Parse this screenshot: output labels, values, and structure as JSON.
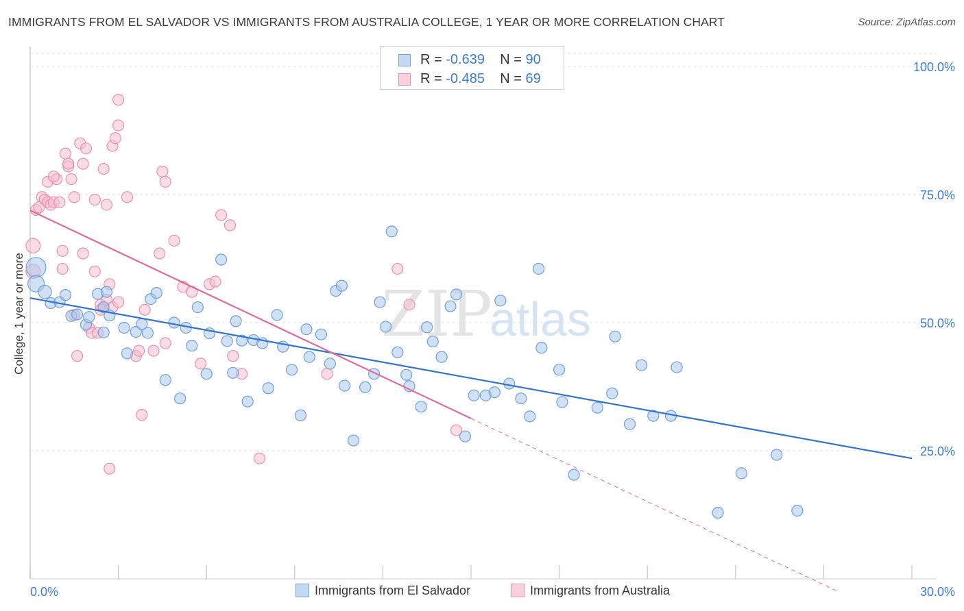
{
  "title": "IMMIGRANTS FROM EL SALVADOR VS IMMIGRANTS FROM AUSTRALIA COLLEGE, 1 YEAR OR MORE CORRELATION CHART",
  "source": "Source: ZipAtlas.com",
  "watermark": {
    "zip": "ZIP",
    "atlas": "atlas"
  },
  "legend": {
    "series1": {
      "r_label": "R = ",
      "r_value": "-0.639",
      "n_label": "N = ",
      "n_value": "90"
    },
    "series2": {
      "r_label": "R = ",
      "r_value": "-0.485",
      "n_label": "N = ",
      "n_value": "69"
    }
  },
  "bottom_legend": {
    "series1": "Immigrants from El Salvador",
    "series2": "Immigrants from Australia"
  },
  "colors": {
    "blue_fill": "#a9c6ec",
    "blue_stroke": "#6f9fdc",
    "blue_line": "#2f74d0",
    "pink_fill": "#f6bfd0",
    "pink_stroke": "#ec8fae",
    "pink_line": "#e2699a",
    "grid": "#dcdcdc",
    "tick_label": "#3a7bd5"
  },
  "chart_data": {
    "type": "scatter",
    "title": "IMMIGRANTS FROM EL SALVADOR VS IMMIGRANTS FROM AUSTRALIA COLLEGE, 1 YEAR OR MORE CORRELATION CHART",
    "xlabel": "",
    "ylabel": "College, 1 year or more",
    "xlim": [
      0,
      30
    ],
    "ylim": [
      0,
      105
    ],
    "x_tick_labels": [
      "0.0%",
      "30.0%"
    ],
    "y_ticks": [
      25,
      50,
      75,
      100
    ],
    "y_tick_labels": [
      "25.0%",
      "50.0%",
      "75.0%",
      "100.0%"
    ],
    "series": [
      {
        "name": "Immigrants from El Salvador",
        "r": -0.639,
        "n": 90,
        "trend": {
          "x0": 0,
          "y0": 54.8,
          "x1": 30,
          "y1": 23.5
        },
        "points": [
          [
            0.2,
            60.8,
            1.8
          ],
          [
            0.2,
            57.6,
            1.5
          ],
          [
            0.5,
            56.0,
            1.2
          ],
          [
            0.7,
            53.8,
            1
          ],
          [
            1.0,
            54.0,
            1
          ],
          [
            1.2,
            55.4,
            1
          ],
          [
            1.4,
            51.3,
            1
          ],
          [
            1.6,
            51.6,
            1
          ],
          [
            1.9,
            49.6,
            1
          ],
          [
            2.0,
            51.1,
            1
          ],
          [
            2.5,
            53.0,
            1
          ],
          [
            2.7,
            51.4,
            1
          ],
          [
            2.3,
            55.6,
            1
          ],
          [
            2.6,
            56.0,
            1
          ],
          [
            2.5,
            48.1,
            1
          ],
          [
            3.2,
            49.0,
            1
          ],
          [
            3.3,
            44.0,
            1
          ],
          [
            3.6,
            48.2,
            1
          ],
          [
            3.8,
            49.7,
            1
          ],
          [
            4.0,
            48.0,
            1
          ],
          [
            4.1,
            54.6,
            1
          ],
          [
            4.3,
            55.8,
            1
          ],
          [
            4.6,
            38.8,
            1
          ],
          [
            4.9,
            50.0,
            1
          ],
          [
            5.1,
            35.2,
            1
          ],
          [
            5.3,
            49.0,
            1
          ],
          [
            5.5,
            45.5,
            1
          ],
          [
            5.7,
            53.0,
            1
          ],
          [
            6.0,
            40.0,
            1
          ],
          [
            6.1,
            47.9,
            1
          ],
          [
            6.5,
            62.3,
            1
          ],
          [
            6.7,
            46.4,
            1
          ],
          [
            6.9,
            40.2,
            1
          ],
          [
            7.0,
            50.3,
            1
          ],
          [
            7.2,
            46.5,
            1
          ],
          [
            7.4,
            34.6,
            1
          ],
          [
            7.6,
            46.6,
            1
          ],
          [
            7.9,
            46.0,
            1
          ],
          [
            8.1,
            37.2,
            1
          ],
          [
            8.4,
            51.5,
            1
          ],
          [
            8.6,
            45.3,
            1
          ],
          [
            8.9,
            40.8,
            1
          ],
          [
            9.2,
            31.9,
            1
          ],
          [
            9.4,
            48.7,
            1
          ],
          [
            9.5,
            43.3,
            1
          ],
          [
            9.9,
            47.7,
            1
          ],
          [
            10.2,
            42.0,
            1
          ],
          [
            10.4,
            56.2,
            1
          ],
          [
            10.6,
            57.2,
            1
          ],
          [
            10.7,
            37.7,
            1
          ],
          [
            11.0,
            27.0,
            1
          ],
          [
            11.4,
            37.4,
            1
          ],
          [
            11.7,
            40.0,
            1
          ],
          [
            11.9,
            54.0,
            1
          ],
          [
            12.1,
            49.2,
            1
          ],
          [
            12.3,
            67.8,
            1
          ],
          [
            12.5,
            44.2,
            1
          ],
          [
            12.8,
            39.8,
            1
          ],
          [
            12.9,
            37.6,
            1
          ],
          [
            13.3,
            33.6,
            1
          ],
          [
            13.5,
            49.1,
            1
          ],
          [
            13.7,
            46.3,
            1
          ],
          [
            14.0,
            43.3,
            1
          ],
          [
            14.3,
            53.2,
            1
          ],
          [
            14.5,
            55.5,
            1
          ],
          [
            14.8,
            27.8,
            1
          ],
          [
            15.1,
            35.8,
            1
          ],
          [
            15.5,
            35.8,
            1
          ],
          [
            15.8,
            36.4,
            1
          ],
          [
            16.0,
            54.3,
            1
          ],
          [
            16.3,
            38.1,
            1
          ],
          [
            16.7,
            35.2,
            1
          ],
          [
            17.0,
            31.7,
            1
          ],
          [
            17.3,
            60.5,
            1
          ],
          [
            17.4,
            45.1,
            1
          ],
          [
            18.0,
            40.8,
            1
          ],
          [
            18.1,
            34.5,
            1
          ],
          [
            18.5,
            20.3,
            1
          ],
          [
            19.3,
            33.4,
            1
          ],
          [
            19.8,
            36.2,
            1
          ],
          [
            19.9,
            47.3,
            1
          ],
          [
            20.4,
            30.2,
            1
          ],
          [
            20.8,
            41.7,
            1
          ],
          [
            21.2,
            31.8,
            1
          ],
          [
            21.8,
            31.8,
            1
          ],
          [
            22.0,
            41.3,
            1
          ],
          [
            23.4,
            12.9,
            1
          ],
          [
            24.2,
            20.6,
            1
          ],
          [
            25.4,
            24.2,
            1
          ],
          [
            26.1,
            13.3,
            1
          ]
        ]
      },
      {
        "name": "Immigrants from Australia",
        "r": -0.485,
        "n": 69,
        "trend": {
          "x0": 0,
          "y0": 71.9,
          "x1": 15.0,
          "y1": 31.3,
          "dash_x1": 27.5,
          "dash_y1": -2.5
        },
        "points": [
          [
            0.1,
            65.0,
            1.3
          ],
          [
            0.1,
            60.0,
            1.3
          ],
          [
            0.2,
            72.0,
            1
          ],
          [
            0.3,
            72.5,
            1
          ],
          [
            0.4,
            74.5,
            1
          ],
          [
            0.5,
            74.0,
            1
          ],
          [
            0.6,
            73.5,
            1
          ],
          [
            0.6,
            77.5,
            1
          ],
          [
            0.7,
            73.0,
            1
          ],
          [
            0.8,
            73.5,
            1
          ],
          [
            0.9,
            78.0,
            1
          ],
          [
            0.8,
            78.5,
            1
          ],
          [
            1.0,
            73.5,
            1
          ],
          [
            1.1,
            64.0,
            1
          ],
          [
            1.1,
            60.5,
            1
          ],
          [
            1.2,
            83.0,
            1
          ],
          [
            1.3,
            80.5,
            1
          ],
          [
            1.3,
            81.0,
            1
          ],
          [
            1.4,
            78.0,
            1
          ],
          [
            1.5,
            51.5,
            1
          ],
          [
            1.5,
            74.5,
            1
          ],
          [
            1.6,
            43.5,
            1
          ],
          [
            1.7,
            85.0,
            1
          ],
          [
            1.8,
            81.0,
            1
          ],
          [
            1.8,
            63.5,
            1
          ],
          [
            1.9,
            84.0,
            1
          ],
          [
            2.0,
            49.0,
            1
          ],
          [
            2.1,
            48.0,
            1
          ],
          [
            2.2,
            74.0,
            1
          ],
          [
            2.2,
            60.0,
            1
          ],
          [
            2.3,
            48.0,
            1
          ],
          [
            2.4,
            53.5,
            1
          ],
          [
            2.4,
            52.5,
            1
          ],
          [
            2.5,
            80.0,
            1
          ],
          [
            2.6,
            54.5,
            1
          ],
          [
            2.6,
            73.0,
            1
          ],
          [
            2.7,
            57.5,
            1
          ],
          [
            2.7,
            21.5,
            1
          ],
          [
            2.8,
            53.0,
            1
          ],
          [
            2.8,
            84.5,
            1
          ],
          [
            2.9,
            86.0,
            1
          ],
          [
            3.0,
            88.5,
            1
          ],
          [
            3.0,
            93.5,
            1
          ],
          [
            3.3,
            74.5,
            1
          ],
          [
            3.6,
            43.5,
            1
          ],
          [
            3.7,
            44.5,
            1
          ],
          [
            3.8,
            32.0,
            1
          ],
          [
            3.9,
            52.5,
            1
          ],
          [
            4.2,
            44.5,
            1
          ],
          [
            4.4,
            63.5,
            1
          ],
          [
            4.5,
            79.5,
            1
          ],
          [
            4.6,
            77.5,
            1
          ],
          [
            4.6,
            46.0,
            1
          ],
          [
            4.9,
            66.0,
            1
          ],
          [
            5.2,
            57.0,
            1
          ],
          [
            5.5,
            56.0,
            1
          ],
          [
            5.8,
            42.0,
            1
          ],
          [
            6.1,
            57.5,
            1
          ],
          [
            6.3,
            58.0,
            1
          ],
          [
            6.5,
            71.0,
            1
          ],
          [
            6.8,
            69.0,
            1
          ],
          [
            6.9,
            43.5,
            1
          ],
          [
            7.2,
            40.0,
            1
          ],
          [
            7.8,
            23.5,
            1
          ],
          [
            10.1,
            40.0,
            1
          ],
          [
            12.5,
            60.5,
            1
          ],
          [
            12.9,
            53.5,
            1
          ],
          [
            14.5,
            29.0,
            1
          ],
          [
            3.0,
            54.0,
            1
          ]
        ]
      }
    ]
  }
}
